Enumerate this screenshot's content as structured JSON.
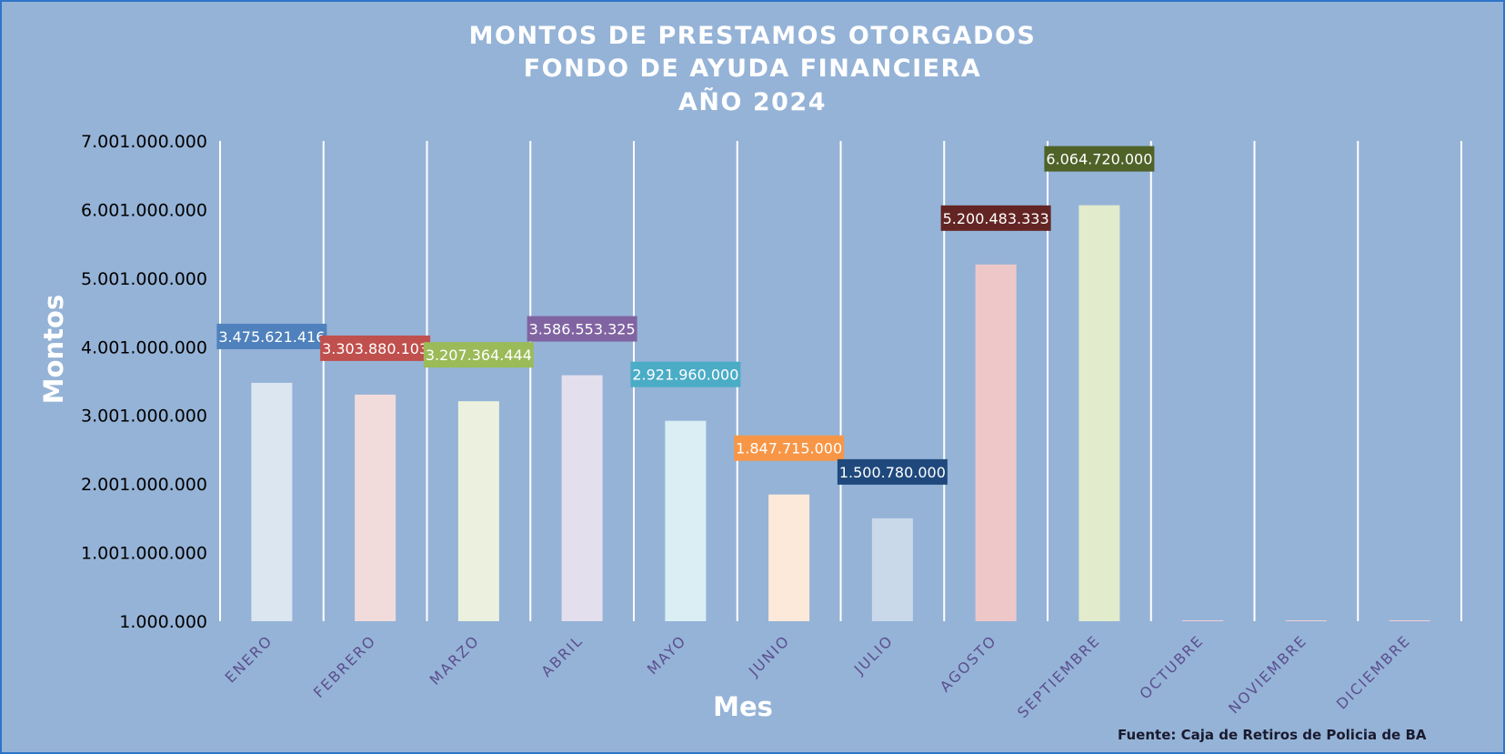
{
  "chart_data": {
    "type": "bar",
    "title_lines": [
      "MONTOS DE PRESTAMOS OTORGADOS",
      "FONDO DE AYUDA FINANCIERA",
      "AÑO  2024"
    ],
    "xlabel": "Mes",
    "ylabel": "Montos",
    "source": "Fuente: Caja de Retiros de Policia de BA",
    "categories": [
      "ENERO",
      "FEBRERO",
      "MARZO",
      "ABRIL",
      "MAYO",
      "JUNIO",
      "JULIO",
      "AGOSTO",
      "SEPTIEMBRE",
      "OCTUBRE",
      "NOVIEMBRE",
      "DICIEMBRE"
    ],
    "values": [
      3475621416,
      3303880103,
      3207364444,
      3586553325,
      2921960000,
      1847715000,
      1500780000,
      5200483333,
      6064720000,
      0,
      0,
      0
    ],
    "data_labels": [
      "3.475.621.416",
      "3.303.880.103",
      "3.207.364.444",
      "3.586.553.325",
      "2.921.960.000",
      "1.847.715.000",
      "1.500.780.000",
      "5.200.483.333",
      "6.064.720.000",
      "",
      "",
      ""
    ],
    "ylim": [
      1000000,
      7001000000
    ],
    "y_ticks": [
      1000000,
      1001000000,
      2001000000,
      3001000000,
      4001000000,
      5001000000,
      6001000000,
      7001000000
    ],
    "y_tick_labels": [
      "1.000.000",
      "1.001.000.000",
      "2.001.000.000",
      "3.001.000.000",
      "4.001.000.000",
      "5.001.000.000",
      "6.001.000.000",
      "7.001.000.000"
    ],
    "grid": "vertical",
    "legend": "none",
    "colors": {
      "background": "#95b3d7",
      "border": "#2e75c8",
      "grid": "#ffffff",
      "tick_text": "#000000",
      "category_text": "#5b4f8f",
      "bars": [
        "#dce6f1",
        "#f2dcdb",
        "#ebf1de",
        "#e4dfec",
        "#daeef3",
        "#fde9d9",
        "#c5d9f1",
        "#e6b8b7",
        "#ebf1de",
        "#e6b8b7",
        "#e6b8b7",
        "#e6b8b7"
      ],
      "bar_fills": [
        "#dce6f1",
        "#f2dcdb",
        "#ebf1de",
        "#e4dfec",
        "#daeef3",
        "#fde9d9",
        "#c9d9ea",
        "#eec8c8",
        "#e3ebcd",
        "#f0d0d0",
        "#f0d0d0",
        "#f0d0d0"
      ],
      "label_backgrounds": [
        "#4f81bd",
        "#c0504d",
        "#9bbb59",
        "#8064a2",
        "#4bacc6",
        "#f79646",
        "#1f497d",
        "#632523",
        "#4f6228",
        "#c0504d",
        "#c0504d",
        "#c0504d"
      ]
    }
  }
}
